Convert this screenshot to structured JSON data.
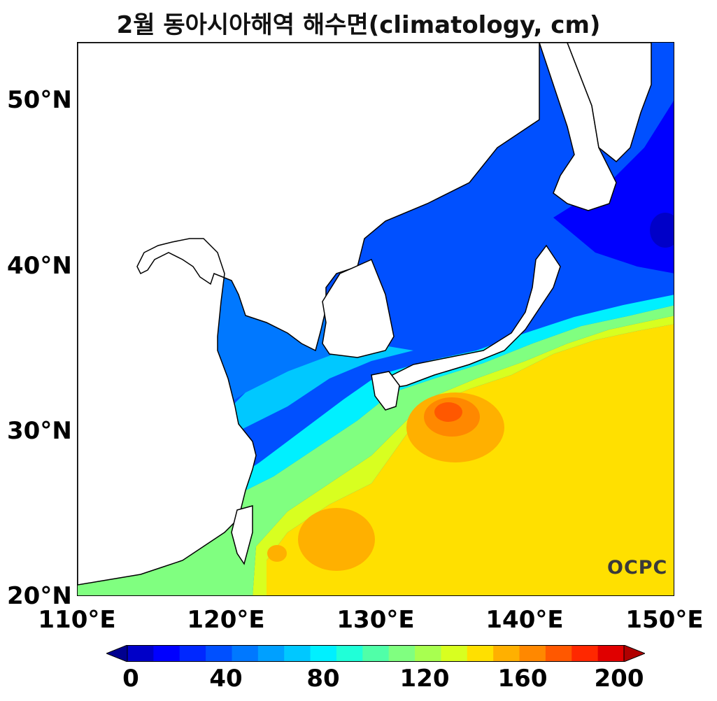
{
  "title": "2월 동아시아해역 해수면(climatology, cm)",
  "logo": "OCPC",
  "axes": {
    "lat_labels": [
      "50°N",
      "40°N",
      "30°N",
      "20°N"
    ],
    "lon_labels": [
      "110°E",
      "120°E",
      "130°E",
      "140°E",
      "150°E"
    ],
    "lat_range": [
      20,
      53.5
    ],
    "lon_range": [
      110,
      150
    ]
  },
  "colorbar": {
    "min": 0,
    "max": 200,
    "step": 10,
    "tick_labels": [
      "0",
      "40",
      "80",
      "120",
      "160",
      "200"
    ],
    "colors": [
      "#00008f",
      "#0000c8",
      "#0000ff",
      "#0028ff",
      "#0050ff",
      "#0078ff",
      "#00a0ff",
      "#00c8ff",
      "#00f0ff",
      "#20ffd8",
      "#50ffa8",
      "#80ff80",
      "#a8ff50",
      "#d8ff20",
      "#ffe000",
      "#ffb000",
      "#ff8800",
      "#ff5800",
      "#ff2800",
      "#e00000",
      "#b00000"
    ]
  },
  "legend_colors": {
    "land": "#ffffff",
    "coast": "#000000"
  }
}
